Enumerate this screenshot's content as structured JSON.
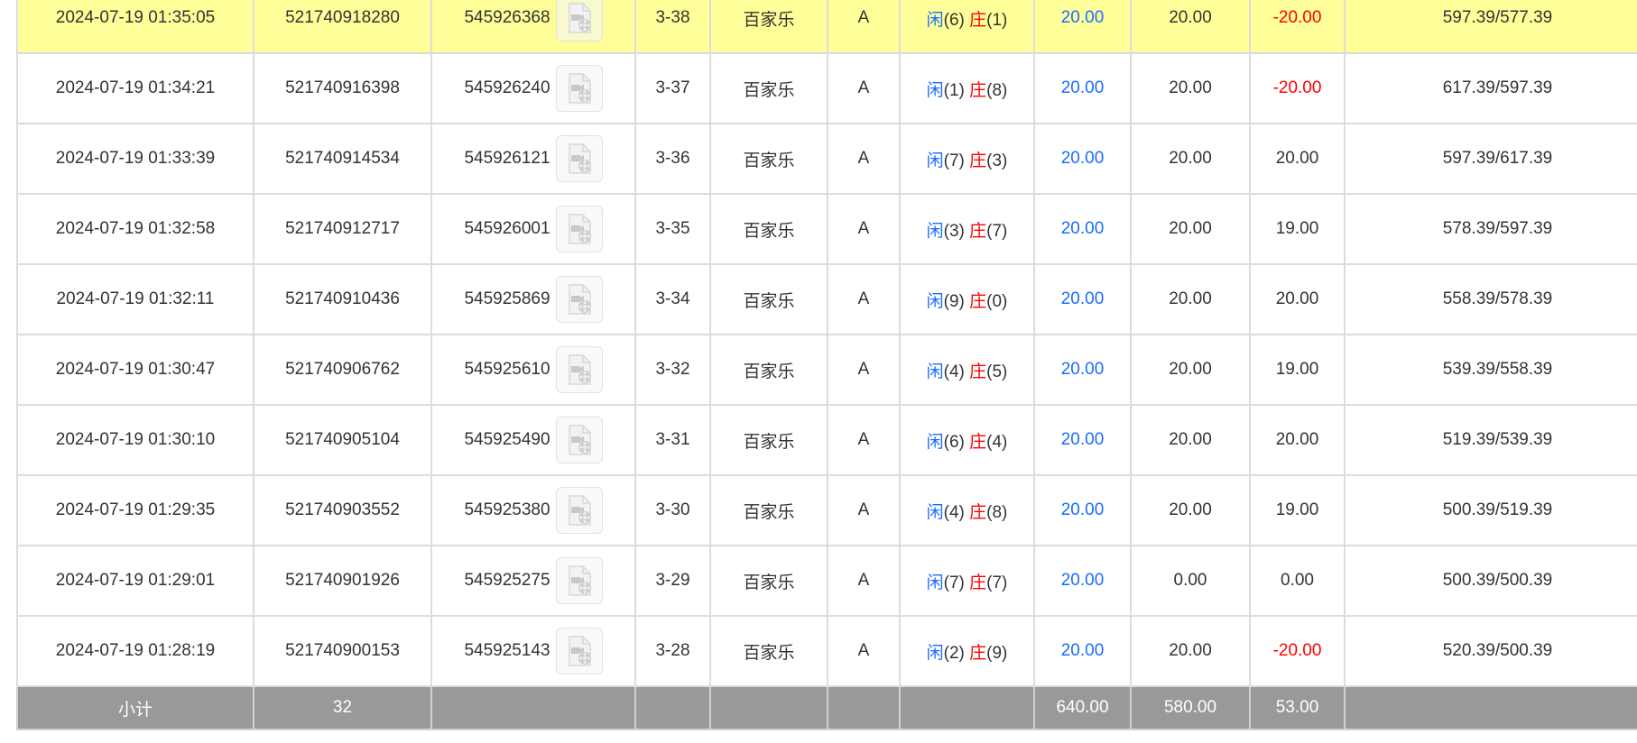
{
  "colors": {
    "highlight": "#ffff99",
    "player": "#1a6cff",
    "banker": "#ff0000",
    "negative": "#ff0000",
    "footer": "#999999"
  },
  "labels": {
    "player": "闲",
    "banker": "庄"
  },
  "rows": [
    {
      "time": "2024-07-19 01:35:05",
      "order": "521740918280",
      "round": "545926368",
      "table": "3-38",
      "game": "百家乐",
      "seat": "A",
      "player": "(6)",
      "banker": "(1)",
      "bet": "20.00",
      "valid": "20.00",
      "win": "-20.00",
      "win_negative": true,
      "balance": "597.39/577.39",
      "highlight": true
    },
    {
      "time": "2024-07-19 01:34:21",
      "order": "521740916398",
      "round": "545926240",
      "table": "3-37",
      "game": "百家乐",
      "seat": "A",
      "player": "(1)",
      "banker": "(8)",
      "bet": "20.00",
      "valid": "20.00",
      "win": "-20.00",
      "win_negative": true,
      "balance": "617.39/597.39"
    },
    {
      "time": "2024-07-19 01:33:39",
      "order": "521740914534",
      "round": "545926121",
      "table": "3-36",
      "game": "百家乐",
      "seat": "A",
      "player": "(7)",
      "banker": "(3)",
      "bet": "20.00",
      "valid": "20.00",
      "win": "20.00",
      "balance": "597.39/617.39"
    },
    {
      "time": "2024-07-19 01:32:58",
      "order": "521740912717",
      "round": "545926001",
      "table": "3-35",
      "game": "百家乐",
      "seat": "A",
      "player": "(3)",
      "banker": "(7)",
      "bet": "20.00",
      "valid": "20.00",
      "win": "19.00",
      "balance": "578.39/597.39"
    },
    {
      "time": "2024-07-19 01:32:11",
      "order": "521740910436",
      "round": "545925869",
      "table": "3-34",
      "game": "百家乐",
      "seat": "A",
      "player": "(9)",
      "banker": "(0)",
      "bet": "20.00",
      "valid": "20.00",
      "win": "20.00",
      "balance": "558.39/578.39"
    },
    {
      "time": "2024-07-19 01:30:47",
      "order": "521740906762",
      "round": "545925610",
      "table": "3-32",
      "game": "百家乐",
      "seat": "A",
      "player": "(4)",
      "banker": "(5)",
      "bet": "20.00",
      "valid": "20.00",
      "win": "19.00",
      "balance": "539.39/558.39"
    },
    {
      "time": "2024-07-19 01:30:10",
      "order": "521740905104",
      "round": "545925490",
      "table": "3-31",
      "game": "百家乐",
      "seat": "A",
      "player": "(6)",
      "banker": "(4)",
      "bet": "20.00",
      "valid": "20.00",
      "win": "20.00",
      "balance": "519.39/539.39"
    },
    {
      "time": "2024-07-19 01:29:35",
      "order": "521740903552",
      "round": "545925380",
      "table": "3-30",
      "game": "百家乐",
      "seat": "A",
      "player": "(4)",
      "banker": "(8)",
      "bet": "20.00",
      "valid": "20.00",
      "win": "19.00",
      "balance": "500.39/519.39"
    },
    {
      "time": "2024-07-19 01:29:01",
      "order": "521740901926",
      "round": "545925275",
      "table": "3-29",
      "game": "百家乐",
      "seat": "A",
      "player": "(7)",
      "banker": "(7)",
      "bet": "20.00",
      "valid": "0.00",
      "win": "0.00",
      "balance": "500.39/500.39"
    },
    {
      "time": "2024-07-19 01:28:19",
      "order": "521740900153",
      "round": "545925143",
      "table": "3-28",
      "game": "百家乐",
      "seat": "A",
      "player": "(2)",
      "banker": "(9)",
      "bet": "20.00",
      "valid": "20.00",
      "win": "-20.00",
      "win_negative": true,
      "balance": "520.39/500.39"
    }
  ],
  "footer": {
    "label": "小计",
    "count": "32",
    "bet_total": "640.00",
    "valid_total": "580.00",
    "win_total": "53.00"
  }
}
